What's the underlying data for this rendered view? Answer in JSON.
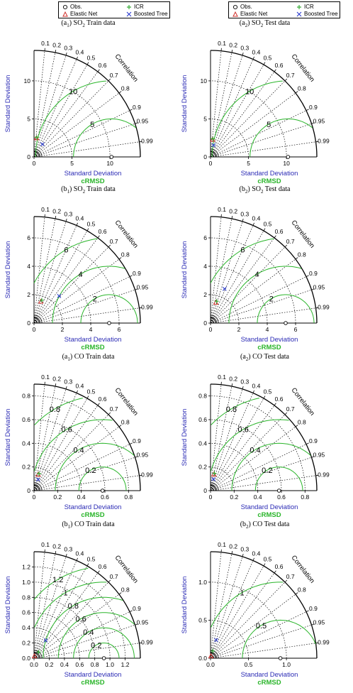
{
  "legend": {
    "obs": "Obs.",
    "icr": "ICR",
    "enet": "Elastic Net",
    "boost": "Boosted Tree"
  },
  "axis_labels": {
    "sd": "Standard Deviation",
    "crmsd": "cRMSD",
    "corr": "Correlation"
  },
  "colors": {
    "sd_label": "#2b2bb5",
    "crmsd": "#2ab52a",
    "elastic_net": "#d0322d",
    "icr": "#33aa33",
    "boosted_tree": "#2233cc",
    "obs": "#000000",
    "corr_lines": "#000000"
  },
  "chart_data": [
    {
      "type": "scatter",
      "subtype": "taylor-diagram",
      "title": {
        "pre": "(a",
        "sub": "1",
        "mid": ") SO",
        "sub2": "2",
        "post": " Train data"
      },
      "sd_max": 14,
      "sd_ticks": [
        0,
        5,
        10
      ],
      "sd_tick_labels": [
        "0",
        "5",
        "10"
      ],
      "crmsd_levels": [
        5,
        10
      ],
      "crmsd_labels": [
        "5",
        "10"
      ],
      "correlation_ticks": [
        0.1,
        0.2,
        0.3,
        0.4,
        0.5,
        0.6,
        0.7,
        0.8,
        0.9,
        0.95,
        0.99
      ],
      "correlation_tick_labels": [
        "0.1",
        "0.2",
        "0.3",
        "0.4",
        "0.5",
        "0.6",
        "0.7",
        "0.8",
        "0.9",
        "0.95",
        "0.99"
      ],
      "obs_sd": 10.2,
      "models": [
        {
          "name": "Elastic Net",
          "sd": 2.5,
          "corr": 0.13
        },
        {
          "name": "ICR",
          "sd": 2.6,
          "corr": 0.14
        },
        {
          "name": "Boosted Tree",
          "sd": 2.0,
          "corr": 0.55
        }
      ]
    },
    {
      "type": "scatter",
      "subtype": "taylor-diagram",
      "title": {
        "pre": "(a",
        "sub": "2",
        "mid": ") SO",
        "sub2": "2",
        "post": " Test data"
      },
      "sd_max": 14,
      "sd_ticks": [
        0,
        5,
        10
      ],
      "sd_tick_labels": [
        "0",
        "5",
        "10"
      ],
      "crmsd_levels": [
        5,
        10
      ],
      "crmsd_labels": [
        "5",
        "10"
      ],
      "correlation_ticks": [
        0.1,
        0.2,
        0.3,
        0.4,
        0.5,
        0.6,
        0.7,
        0.8,
        0.9,
        0.95,
        0.99
      ],
      "correlation_tick_labels": [
        "0.1",
        "0.2",
        "0.3",
        "0.4",
        "0.5",
        "0.6",
        "0.7",
        "0.8",
        "0.9",
        "0.95",
        "0.99"
      ],
      "obs_sd": 10.2,
      "models": [
        {
          "name": "Elastic Net",
          "sd": 2.3,
          "corr": 0.12
        },
        {
          "name": "ICR",
          "sd": 2.4,
          "corr": 0.13
        },
        {
          "name": "Boosted Tree",
          "sd": 1.6,
          "corr": 0.25
        }
      ]
    },
    {
      "type": "scatter",
      "subtype": "taylor-diagram",
      "title": {
        "pre": "(b",
        "sub": "1",
        "mid": ") SO",
        "sub2": "2",
        "post": " Train data"
      },
      "sd_max": 7.5,
      "sd_ticks": [
        0,
        2,
        4,
        6
      ],
      "sd_tick_labels": [
        "0",
        "2",
        "4",
        "6"
      ],
      "crmsd_levels": [
        2,
        4,
        6
      ],
      "crmsd_labels": [
        "2",
        "4",
        "6"
      ],
      "correlation_ticks": [
        0.1,
        0.2,
        0.3,
        0.4,
        0.5,
        0.6,
        0.7,
        0.8,
        0.9,
        0.95,
        0.99
      ],
      "correlation_tick_labels": [
        "0.1",
        "0.2",
        "0.3",
        "0.4",
        "0.5",
        "0.6",
        "0.7",
        "0.8",
        "0.9",
        "0.95",
        "0.99"
      ],
      "obs_sd": 5.3,
      "models": [
        {
          "name": "Elastic Net",
          "sd": 1.6,
          "corr": 0.3
        },
        {
          "name": "ICR",
          "sd": 1.7,
          "corr": 0.32
        },
        {
          "name": "Boosted Tree",
          "sd": 2.6,
          "corr": 0.68
        }
      ]
    },
    {
      "type": "scatter",
      "subtype": "taylor-diagram",
      "title": {
        "pre": "(b",
        "sub": "2",
        "mid": ") SO",
        "sub2": "2",
        "post": " Test data"
      },
      "sd_max": 7.5,
      "sd_ticks": [
        0,
        2,
        4,
        6
      ],
      "sd_tick_labels": [
        "0",
        "2",
        "4",
        "6"
      ],
      "crmsd_levels": [
        2,
        4,
        6
      ],
      "crmsd_labels": [
        "2",
        "4",
        "6"
      ],
      "correlation_ticks": [
        0.1,
        0.2,
        0.3,
        0.4,
        0.5,
        0.6,
        0.7,
        0.8,
        0.9,
        0.95,
        0.99
      ],
      "correlation_tick_labels": [
        "0.1",
        "0.2",
        "0.3",
        "0.4",
        "0.5",
        "0.6",
        "0.7",
        "0.8",
        "0.9",
        "0.95",
        "0.99"
      ],
      "obs_sd": 5.3,
      "models": [
        {
          "name": "Elastic Net",
          "sd": 1.5,
          "corr": 0.25
        },
        {
          "name": "ICR",
          "sd": 1.6,
          "corr": 0.27
        },
        {
          "name": "Boosted Tree",
          "sd": 2.6,
          "corr": 0.38
        }
      ]
    },
    {
      "type": "scatter",
      "subtype": "taylor-diagram",
      "title": {
        "pre": "(a",
        "sub": "1",
        "mid": ") CO",
        "sub2": "",
        "post": " Train data"
      },
      "sd_max": 0.9,
      "sd_ticks": [
        0,
        0.2,
        0.4,
        0.6,
        0.8
      ],
      "sd_tick_labels": [
        "0",
        "0.2",
        "0.4",
        "0.6",
        "0.8"
      ],
      "crmsd_levels": [
        0.2,
        0.4,
        0.6,
        0.8
      ],
      "crmsd_labels": [
        "0.2",
        "0.4",
        "0.6",
        "0.8"
      ],
      "correlation_ticks": [
        0.1,
        0.2,
        0.3,
        0.4,
        0.5,
        0.6,
        0.7,
        0.8,
        0.9,
        0.95,
        0.99
      ],
      "correlation_tick_labels": [
        "0.1",
        "0.2",
        "0.3",
        "0.4",
        "0.5",
        "0.6",
        "0.7",
        "0.8",
        "0.9",
        "0.95",
        "0.99"
      ],
      "obs_sd": 0.58,
      "models": [
        {
          "name": "Elastic Net",
          "sd": 0.14,
          "corr": 0.25
        },
        {
          "name": "ICR",
          "sd": 0.15,
          "corr": 0.28
        },
        {
          "name": "Boosted Tree",
          "sd": 0.1,
          "corr": 0.35
        }
      ]
    },
    {
      "type": "scatter",
      "subtype": "taylor-diagram",
      "title": {
        "pre": "(a",
        "sub": "2",
        "mid": ") CO",
        "sub2": "",
        "post": " Test data"
      },
      "sd_max": 0.9,
      "sd_ticks": [
        0,
        0.2,
        0.4,
        0.6,
        0.8
      ],
      "sd_tick_labels": [
        "0",
        "0.2",
        "0.4",
        "0.6",
        "0.8"
      ],
      "crmsd_levels": [
        0.2,
        0.4,
        0.6,
        0.8
      ],
      "crmsd_labels": [
        "0.2",
        "0.4",
        "0.6",
        "0.8"
      ],
      "correlation_ticks": [
        0.1,
        0.2,
        0.3,
        0.4,
        0.5,
        0.6,
        0.7,
        0.8,
        0.9,
        0.95,
        0.99
      ],
      "correlation_tick_labels": [
        "0.1",
        "0.2",
        "0.3",
        "0.4",
        "0.5",
        "0.6",
        "0.7",
        "0.8",
        "0.9",
        "0.95",
        "0.99"
      ],
      "obs_sd": 0.58,
      "models": [
        {
          "name": "Elastic Net",
          "sd": 0.14,
          "corr": 0.2
        },
        {
          "name": "ICR",
          "sd": 0.15,
          "corr": 0.22
        },
        {
          "name": "Boosted Tree",
          "sd": 0.1,
          "corr": 0.25
        }
      ]
    },
    {
      "type": "scatter",
      "subtype": "taylor-diagram",
      "title": {
        "pre": "(b",
        "sub": "1",
        "mid": ") CO",
        "sub2": "",
        "post": " Train data"
      },
      "sd_max": 1.4,
      "sd_ticks": [
        0,
        0.2,
        0.4,
        0.6,
        0.8,
        1.0,
        1.2
      ],
      "sd_tick_labels": [
        "0.0",
        "0.2",
        "0.4",
        "0.6",
        "0.8",
        "1.0",
        "1.2"
      ],
      "crmsd_levels": [
        0.2,
        0.4,
        0.6,
        0.8,
        1.0,
        1.2
      ],
      "crmsd_labels": [
        "0.2",
        "0.4",
        "0.6",
        "0.8",
        "1",
        "1.2"
      ],
      "correlation_ticks": [
        0.1,
        0.2,
        0.3,
        0.4,
        0.5,
        0.6,
        0.7,
        0.8,
        0.9,
        0.95,
        0.99
      ],
      "correlation_tick_labels": [
        "0.1",
        "0.2",
        "0.3",
        "0.4",
        "0.5",
        "0.6",
        "0.7",
        "0.8",
        "0.9",
        "0.95",
        "0.99"
      ],
      "obs_sd": 0.92,
      "models": [
        {
          "name": "Elastic Net",
          "sd": 0.03,
          "corr": 0.2
        },
        {
          "name": "ICR",
          "sd": 0.1,
          "corr": 0.6
        },
        {
          "name": "Boosted Tree",
          "sd": 0.28,
          "corr": 0.55
        }
      ]
    },
    {
      "type": "scatter",
      "subtype": "taylor-diagram",
      "title": {
        "pre": "(b",
        "sub": "2",
        "mid": ") CO",
        "sub2": "",
        "post": " Test data"
      },
      "sd_max": 1.4,
      "sd_ticks": [
        0,
        0.5,
        1.0
      ],
      "sd_tick_labels": [
        "0.0",
        "0.5",
        "1.0"
      ],
      "crmsd_levels": [
        0.5,
        1.0
      ],
      "crmsd_labels": [
        "0.5",
        "1"
      ],
      "correlation_ticks": [
        0.1,
        0.2,
        0.3,
        0.4,
        0.5,
        0.6,
        0.7,
        0.8,
        0.9,
        0.95,
        0.99
      ],
      "correlation_tick_labels": [
        "0.1",
        "0.2",
        "0.3",
        "0.4",
        "0.5",
        "0.6",
        "0.7",
        "0.8",
        "0.9",
        "0.95",
        "0.99"
      ],
      "obs_sd": 0.92,
      "models": [
        {
          "name": "Elastic Net",
          "sd": 0.03,
          "corr": 0.2
        },
        {
          "name": "ICR",
          "sd": 0.1,
          "corr": 0.3
        },
        {
          "name": "Boosted Tree",
          "sd": 0.25,
          "corr": 0.3
        }
      ]
    }
  ]
}
